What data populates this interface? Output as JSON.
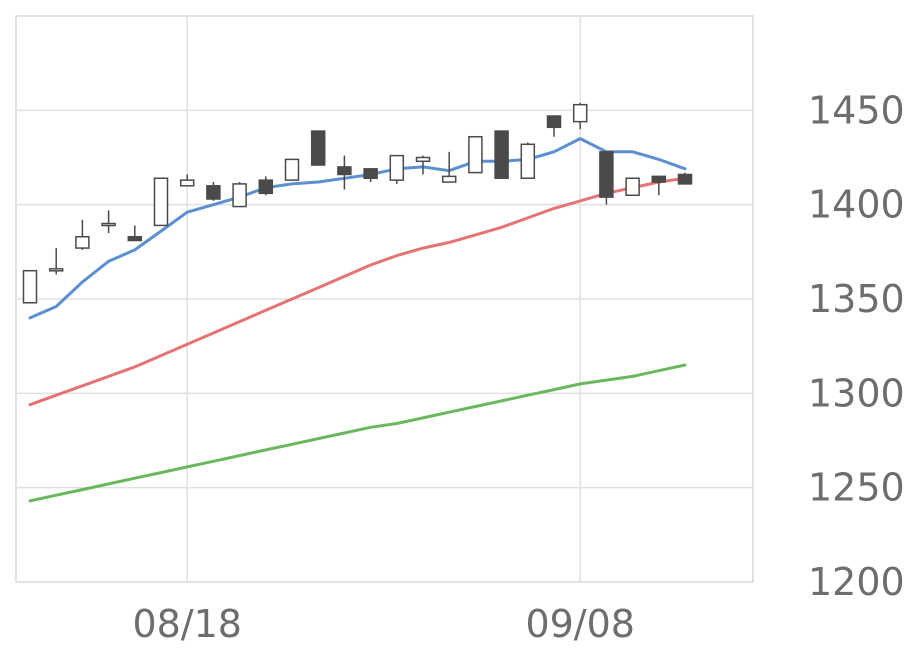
{
  "chart_data": {
    "type": "candlestick",
    "xlabel": "",
    "ylabel": "",
    "ylim": [
      1200,
      1500
    ],
    "grid": true,
    "y_axis_position": "right",
    "y_ticks": [
      "1200",
      "1250",
      "1300",
      "1350",
      "1400",
      "1450"
    ],
    "x_ticks": [
      {
        "index": 6,
        "label": "08/18"
      },
      {
        "index": 21,
        "label": "09/08"
      }
    ],
    "colors": {
      "up_fill": "#ffffff",
      "down_fill": "#4a4a4a",
      "candle_edge": "#4a4a4a",
      "grid": "#e0e0e0",
      "ma_short": "#5b8fd0",
      "ma_mid": "#e57373",
      "ma_long": "#6ab85e"
    },
    "candles": [
      {
        "open": 1348,
        "high": 1365,
        "low": 1348,
        "close": 1365
      },
      {
        "open": 1365,
        "high": 1377,
        "low": 1363,
        "close": 1366
      },
      {
        "open": 1377,
        "high": 1392,
        "low": 1376,
        "close": 1383
      },
      {
        "open": 1389,
        "high": 1397,
        "low": 1385,
        "close": 1390
      },
      {
        "open": 1383,
        "high": 1389,
        "low": 1381,
        "close": 1381
      },
      {
        "open": 1389,
        "high": 1414,
        "low": 1389,
        "close": 1414
      },
      {
        "open": 1410,
        "high": 1416,
        "low": 1410,
        "close": 1413
      },
      {
        "open": 1410,
        "high": 1412,
        "low": 1402,
        "close": 1403
      },
      {
        "open": 1399,
        "high": 1412,
        "low": 1399,
        "close": 1411
      },
      {
        "open": 1413,
        "high": 1415,
        "low": 1405,
        "close": 1406
      },
      {
        "open": 1413,
        "high": 1424,
        "low": 1413,
        "close": 1424
      },
      {
        "open": 1439,
        "high": 1439,
        "low": 1421,
        "close": 1421
      },
      {
        "open": 1420,
        "high": 1426,
        "low": 1408,
        "close": 1416
      },
      {
        "open": 1419,
        "high": 1419,
        "low": 1412,
        "close": 1414
      },
      {
        "open": 1413,
        "high": 1426,
        "low": 1411,
        "close": 1426
      },
      {
        "open": 1423,
        "high": 1426,
        "low": 1416,
        "close": 1425
      },
      {
        "open": 1412,
        "high": 1428,
        "low": 1412,
        "close": 1415
      },
      {
        "open": 1417,
        "high": 1436,
        "low": 1417,
        "close": 1436
      },
      {
        "open": 1439,
        "high": 1439,
        "low": 1414,
        "close": 1414
      },
      {
        "open": 1414,
        "high": 1433,
        "low": 1414,
        "close": 1432
      },
      {
        "open": 1447,
        "high": 1447,
        "low": 1436,
        "close": 1441
      },
      {
        "open": 1444,
        "high": 1454,
        "low": 1440,
        "close": 1453
      },
      {
        "open": 1428,
        "high": 1428,
        "low": 1400,
        "close": 1404
      },
      {
        "open": 1405,
        "high": 1414,
        "low": 1405,
        "close": 1414
      },
      {
        "open": 1415,
        "high": 1415,
        "low": 1405,
        "close": 1412
      },
      {
        "open": 1416,
        "high": 1417,
        "low": 1411,
        "close": 1411
      }
    ],
    "series": [
      {
        "key": "ma_short",
        "values": [
          1340,
          1346,
          1359,
          1370,
          1376,
          1386,
          1396,
          1400,
          1404,
          1409,
          1411,
          1412,
          1414,
          1416,
          1419,
          1420,
          1418,
          1423,
          1423,
          1424,
          1428,
          1435,
          1428,
          1428,
          1424,
          1419
        ]
      },
      {
        "key": "ma_mid",
        "values": [
          1294,
          1299,
          1304,
          1309,
          1314,
          1320,
          1326,
          1332,
          1338,
          1344,
          1350,
          1356,
          1362,
          1368,
          1373,
          1377,
          1380,
          1384,
          1388,
          1393,
          1398,
          1402,
          1406,
          1409,
          1412,
          1414
        ]
      },
      {
        "key": "ma_long",
        "values": [
          1243,
          1246,
          1249,
          1252,
          1255,
          1258,
          1261,
          1264,
          1267,
          1270,
          1273,
          1276,
          1279,
          1282,
          1284,
          1287,
          1290,
          1293,
          1296,
          1299,
          1302,
          1305,
          1307,
          1309,
          1312,
          1315
        ]
      }
    ]
  }
}
